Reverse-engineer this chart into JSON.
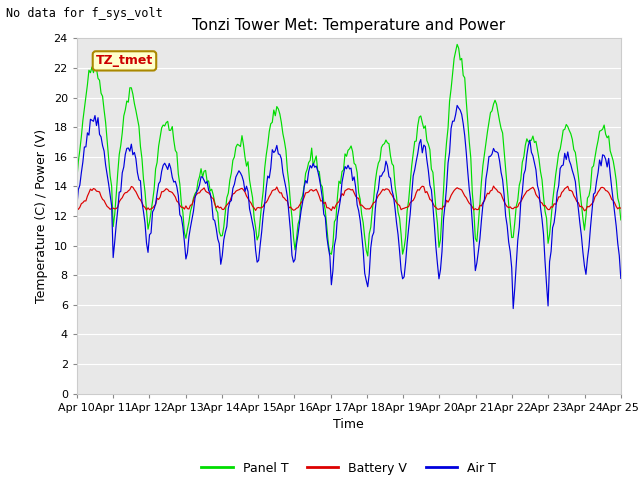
{
  "title": "Tonzi Tower Met: Temperature and Power",
  "top_left_note": "No data for f_sys_volt",
  "ylabel": "Temperature (C) / Power (V)",
  "xlabel": "Time",
  "ylim": [
    0,
    24
  ],
  "yticks": [
    0,
    2,
    4,
    6,
    8,
    10,
    12,
    14,
    16,
    18,
    20,
    22,
    24
  ],
  "xtick_labels": [
    "Apr 10",
    "Apr 11",
    "Apr 12",
    "Apr 13",
    "Apr 14",
    "Apr 15",
    "Apr 16",
    "Apr 17",
    "Apr 18",
    "Apr 19",
    "Apr 20",
    "Apr 21",
    "Apr 22",
    "Apr 23",
    "Apr 24",
    "Apr 25"
  ],
  "panel_t_color": "#00dd00",
  "battery_v_color": "#dd0000",
  "air_t_color": "#0000dd",
  "legend_labels": [
    "Panel T",
    "Battery V",
    "Air T"
  ],
  "fig_bg_color": "#ffffff",
  "plot_bg_color": "#e8e8e8",
  "annotation_box_color": "#ffffcc",
  "annotation_text": "TZ_tmet",
  "annotation_border_color": "#aa8800",
  "grid_color": "#ffffff",
  "title_fontsize": 11,
  "axis_fontsize": 9,
  "tick_fontsize": 8
}
